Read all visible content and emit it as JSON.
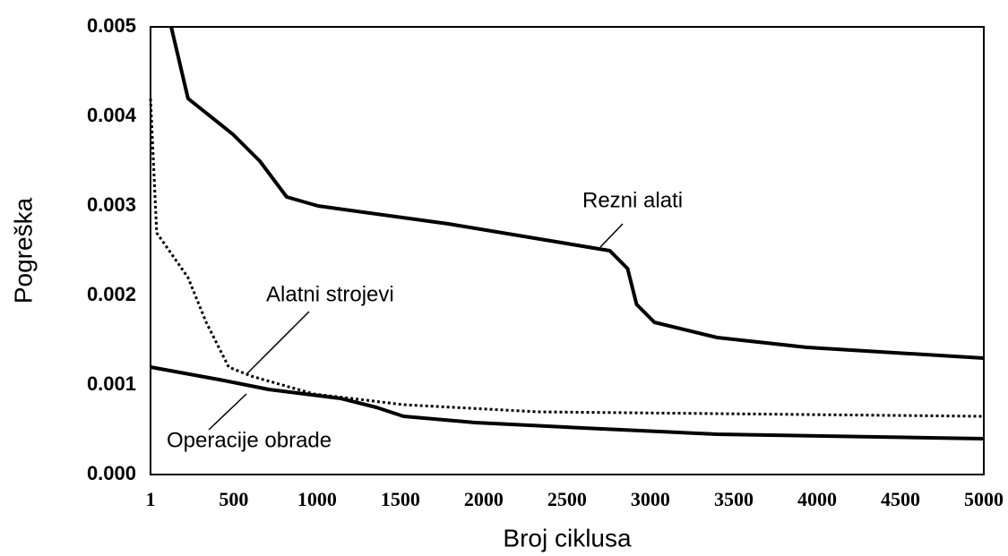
{
  "chart_data": {
    "type": "line",
    "xlabel": "Broj ciklusa",
    "ylabel": "Pogreška",
    "xlim": [
      1,
      5000
    ],
    "ylim": [
      0,
      0.005
    ],
    "xticks": [
      1,
      500,
      1000,
      1500,
      2000,
      2500,
      3000,
      3500,
      4000,
      4500,
      5000
    ],
    "yticks": [
      {
        "value": 0,
        "label": "0.000"
      },
      0.001,
      0.002,
      0.003,
      0.004,
      0.005
    ],
    "series": [
      {
        "name": "Rezni alati",
        "color": "#000000",
        "style": "solid",
        "x": [
          125,
          226,
          495,
          657,
          818,
          1006,
          1787,
          2756,
          2863,
          2917,
          3024,
          3400,
          3940,
          5000
        ],
        "values": [
          0.005,
          0.0042,
          0.0038,
          0.0035,
          0.0031,
          0.003,
          0.0028,
          0.0025,
          0.0023,
          0.0019,
          0.0017,
          0.00153,
          0.00142,
          0.0013
        ]
      },
      {
        "name": "Alatni strojevi",
        "color": "#000000",
        "style": "dotted",
        "x": [
          1,
          38,
          226,
          335,
          470,
          604,
          980,
          1519,
          2326,
          3400,
          5000
        ],
        "values": [
          0.0042,
          0.0027,
          0.0022,
          0.0017,
          0.0012,
          0.0011,
          0.0009,
          0.00078,
          0.0007,
          0.00068,
          0.00065
        ]
      },
      {
        "name": "Operacije obrade",
        "color": "#000000",
        "style": "solid",
        "x": [
          1,
          442,
          711,
          1141,
          1356,
          1519,
          1949,
          2595,
          3400,
          5000
        ],
        "values": [
          0.0012,
          0.00105,
          0.00095,
          0.00085,
          0.00075,
          0.00065,
          0.00058,
          0.00052,
          0.00045,
          0.0004
        ]
      }
    ]
  }
}
